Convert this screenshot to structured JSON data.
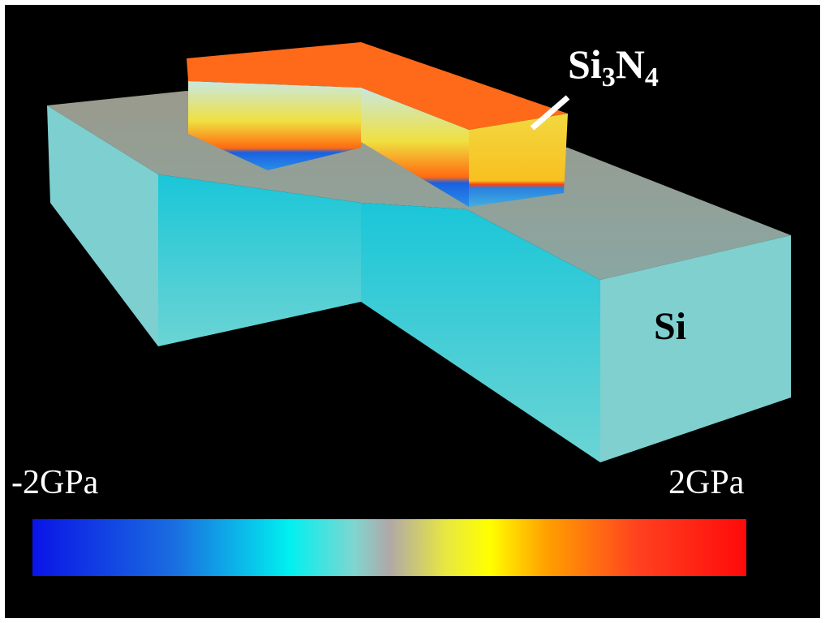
{
  "labels": {
    "film": {
      "parts": [
        "Si",
        "3",
        "N",
        "4"
      ]
    },
    "substrate": "Si"
  },
  "colorbar": {
    "min_label": "-2GPa",
    "max_label": "2GPa"
  }
}
